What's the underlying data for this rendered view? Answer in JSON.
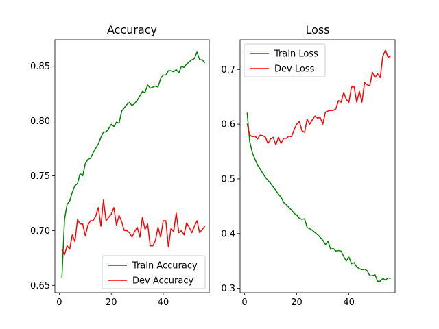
{
  "chart_data": [
    {
      "type": "line",
      "title": "Accuracy",
      "xlim": [
        -1.7,
        57.7
      ],
      "ylim": [
        0.6433,
        0.8742
      ],
      "x_ticks": [
        0,
        20,
        40
      ],
      "y_ticks": [
        0.65,
        0.7,
        0.75,
        0.8,
        0.85
      ],
      "y_tick_labels": [
        "0.65",
        "0.70",
        "0.75",
        "0.80",
        "0.85"
      ],
      "legend_position": "lower-right",
      "series": [
        {
          "name": "Train Accuracy",
          "color": "#008000",
          "x": [
            1,
            2,
            3,
            4,
            5,
            6,
            7,
            8,
            9,
            10,
            11,
            12,
            13,
            14,
            15,
            16,
            17,
            18,
            19,
            20,
            21,
            22,
            23,
            24,
            25,
            26,
            27,
            28,
            29,
            30,
            31,
            32,
            33,
            34,
            35,
            36,
            37,
            38,
            39,
            40,
            41,
            42,
            43,
            44,
            45,
            46,
            47,
            48,
            49,
            50,
            51,
            52,
            53,
            54,
            55,
            56
          ],
          "values": [
            0.657,
            0.71,
            0.724,
            0.727,
            0.735,
            0.741,
            0.743,
            0.752,
            0.75,
            0.761,
            0.765,
            0.766,
            0.771,
            0.775,
            0.779,
            0.785,
            0.79,
            0.79,
            0.793,
            0.797,
            0.795,
            0.799,
            0.798,
            0.809,
            0.812,
            0.815,
            0.817,
            0.814,
            0.816,
            0.819,
            0.823,
            0.827,
            0.826,
            0.833,
            0.83,
            0.831,
            0.832,
            0.831,
            0.839,
            0.842,
            0.842,
            0.846,
            0.846,
            0.845,
            0.847,
            0.844,
            0.85,
            0.849,
            0.852,
            0.854,
            0.856,
            0.857,
            0.863,
            0.856,
            0.856,
            0.853
          ]
        },
        {
          "name": "Dev Accuracy",
          "color": "#ff0000",
          "x": [
            1,
            2,
            3,
            4,
            5,
            6,
            7,
            8,
            9,
            10,
            11,
            12,
            13,
            14,
            15,
            16,
            17,
            18,
            19,
            20,
            21,
            22,
            23,
            24,
            25,
            26,
            27,
            28,
            29,
            30,
            31,
            32,
            33,
            34,
            35,
            36,
            37,
            38,
            39,
            40,
            41,
            42,
            43,
            44,
            45,
            46,
            47,
            48,
            49,
            50,
            51,
            52,
            53,
            54,
            55,
            56
          ],
          "values": [
            0.683,
            0.678,
            0.686,
            0.683,
            0.696,
            0.69,
            0.71,
            0.706,
            0.706,
            0.695,
            0.705,
            0.709,
            0.709,
            0.713,
            0.721,
            0.704,
            0.728,
            0.709,
            0.712,
            0.715,
            0.721,
            0.705,
            0.714,
            0.708,
            0.7,
            0.7,
            0.698,
            0.694,
            0.699,
            0.703,
            0.694,
            0.712,
            0.701,
            0.706,
            0.686,
            0.686,
            0.691,
            0.703,
            0.694,
            0.709,
            0.709,
            0.685,
            0.702,
            0.699,
            0.716,
            0.698,
            0.7,
            0.696,
            0.707,
            0.703,
            0.698,
            0.704,
            0.709,
            0.698,
            0.701,
            0.704
          ]
        }
      ]
    },
    {
      "type": "line",
      "title": "Loss",
      "xlim": [
        -1.7,
        57.7
      ],
      "ylim": [
        0.292,
        0.7542
      ],
      "x_ticks": [
        0,
        20,
        40
      ],
      "y_ticks": [
        0.3,
        0.4,
        0.5,
        0.6,
        0.7
      ],
      "y_tick_labels": [
        "0.3",
        "0.4",
        "0.5",
        "0.6",
        "0.7"
      ],
      "legend_position": "upper-left",
      "series": [
        {
          "name": "Train Loss",
          "color": "#008000",
          "x": [
            1,
            2,
            3,
            4,
            5,
            6,
            7,
            8,
            9,
            10,
            11,
            12,
            13,
            14,
            15,
            16,
            17,
            18,
            19,
            20,
            21,
            22,
            23,
            24,
            25,
            26,
            27,
            28,
            29,
            30,
            31,
            32,
            33,
            34,
            35,
            36,
            37,
            38,
            39,
            40,
            41,
            42,
            43,
            44,
            45,
            46,
            47,
            48,
            49,
            50,
            51,
            52,
            53,
            54,
            55,
            56
          ],
          "values": [
            0.621,
            0.568,
            0.548,
            0.536,
            0.525,
            0.518,
            0.51,
            0.503,
            0.497,
            0.492,
            0.485,
            0.479,
            0.472,
            0.466,
            0.457,
            0.453,
            0.448,
            0.443,
            0.437,
            0.434,
            0.428,
            0.426,
            0.427,
            0.411,
            0.409,
            0.406,
            0.402,
            0.398,
            0.393,
            0.388,
            0.38,
            0.386,
            0.371,
            0.373,
            0.368,
            0.369,
            0.368,
            0.358,
            0.35,
            0.357,
            0.345,
            0.347,
            0.339,
            0.336,
            0.334,
            0.335,
            0.332,
            0.323,
            0.323,
            0.325,
            0.313,
            0.313,
            0.318,
            0.315,
            0.319,
            0.318
          ]
        },
        {
          "name": "Dev Loss",
          "color": "#ff0000",
          "x": [
            1,
            2,
            3,
            4,
            5,
            6,
            7,
            8,
            9,
            10,
            11,
            12,
            13,
            14,
            15,
            16,
            17,
            18,
            19,
            20,
            21,
            22,
            23,
            24,
            25,
            26,
            27,
            28,
            29,
            30,
            31,
            32,
            33,
            34,
            35,
            36,
            37,
            38,
            39,
            40,
            41,
            42,
            43,
            44,
            45,
            46,
            47,
            48,
            49,
            50,
            51,
            52,
            53,
            54,
            55,
            56
          ],
          "values": [
            0.601,
            0.58,
            0.577,
            0.578,
            0.573,
            0.58,
            0.579,
            0.576,
            0.565,
            0.573,
            0.576,
            0.562,
            0.576,
            0.565,
            0.574,
            0.574,
            0.578,
            0.577,
            0.59,
            0.6,
            0.605,
            0.588,
            0.585,
            0.609,
            0.6,
            0.608,
            0.615,
            0.611,
            0.612,
            0.6,
            0.622,
            0.624,
            0.625,
            0.625,
            0.628,
            0.643,
            0.64,
            0.658,
            0.645,
            0.64,
            0.668,
            0.668,
            0.64,
            0.66,
            0.64,
            0.676,
            0.672,
            0.67,
            0.695,
            0.685,
            0.692,
            0.685,
            0.724,
            0.735,
            0.722,
            0.725
          ]
        }
      ]
    }
  ]
}
